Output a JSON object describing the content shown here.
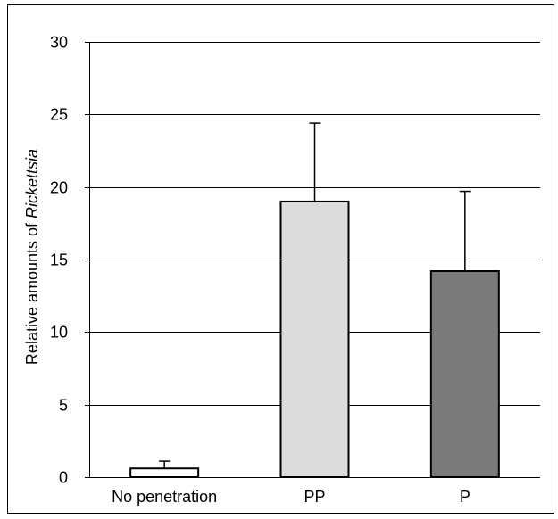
{
  "chart_data": {
    "type": "bar",
    "title": "",
    "xlabel": "",
    "ylabel_prefix": "Relative amounts of ",
    "ylabel_italic": "Rickettsia",
    "categories": [
      "No penetration",
      "PP",
      "P"
    ],
    "values": [
      0.6,
      19.0,
      14.2
    ],
    "errors": [
      0.5,
      5.4,
      5.5
    ],
    "bar_colors": [
      "#ffffff",
      "#dcdcdc",
      "#7a7a7a"
    ],
    "ylim": [
      0,
      30
    ],
    "yticks": [
      0,
      5,
      10,
      15,
      20,
      25,
      30
    ],
    "grid": true,
    "legend": "none"
  }
}
